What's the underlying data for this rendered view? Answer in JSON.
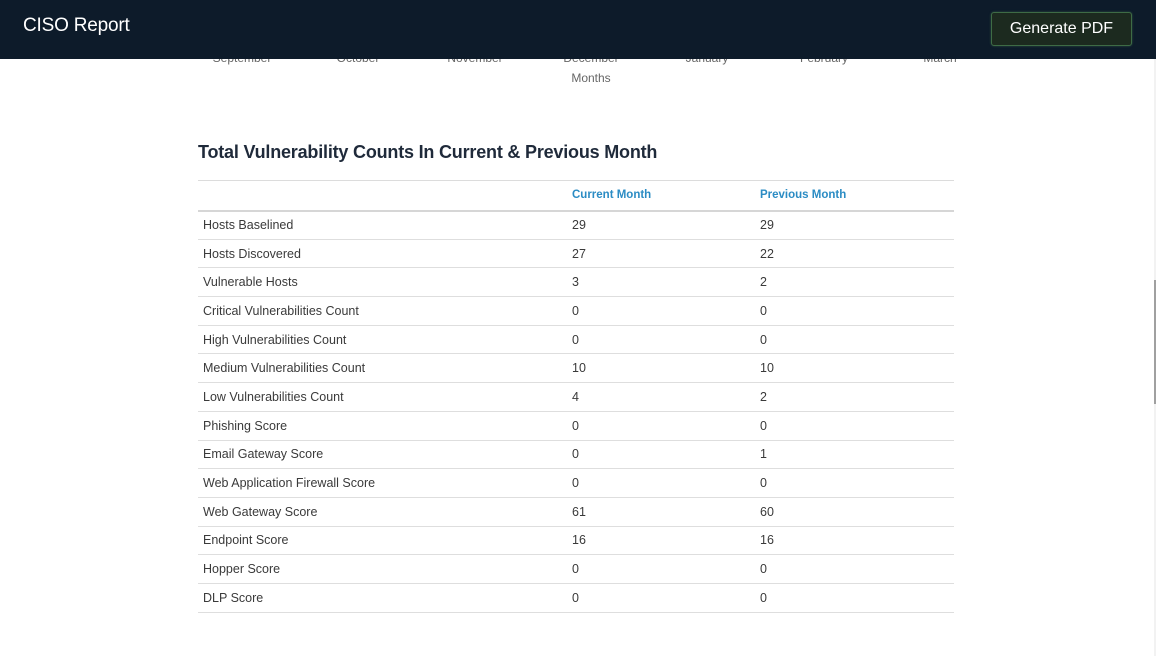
{
  "header": {
    "title": "CISO Report",
    "generate_pdf_label": "Generate PDF"
  },
  "chart_remnant": {
    "months": [
      "September",
      "October",
      "November",
      "December",
      "January",
      "February",
      "March"
    ],
    "axis_title": "Months"
  },
  "section": {
    "title": "Total Vulnerability Counts In Current & Previous Month"
  },
  "table": {
    "headers": [
      "",
      "Current Month",
      "Previous Month"
    ],
    "rows": [
      {
        "metric": "Hosts Baselined",
        "current": "29",
        "previous": "29"
      },
      {
        "metric": "Hosts Discovered",
        "current": "27",
        "previous": "22"
      },
      {
        "metric": "Vulnerable Hosts",
        "current": "3",
        "previous": "2"
      },
      {
        "metric": "Critical Vulnerabilities Count",
        "current": "0",
        "previous": "0"
      },
      {
        "metric": "High Vulnerabilities Count",
        "current": "0",
        "previous": "0"
      },
      {
        "metric": "Medium Vulnerabilities Count",
        "current": "10",
        "previous": "10"
      },
      {
        "metric": "Low Vulnerabilities Count",
        "current": "4",
        "previous": "2"
      },
      {
        "metric": "Phishing Score",
        "current": "0",
        "previous": "0"
      },
      {
        "metric": "Email Gateway Score",
        "current": "0",
        "previous": "1"
      },
      {
        "metric": "Web Application Firewall Score",
        "current": "0",
        "previous": "0"
      },
      {
        "metric": "Web Gateway Score",
        "current": "61",
        "previous": "60"
      },
      {
        "metric": "Endpoint Score",
        "current": "16",
        "previous": "16"
      },
      {
        "metric": "Hopper Score",
        "current": "0",
        "previous": "0"
      },
      {
        "metric": "DLP Score",
        "current": "0",
        "previous": "0"
      }
    ]
  }
}
